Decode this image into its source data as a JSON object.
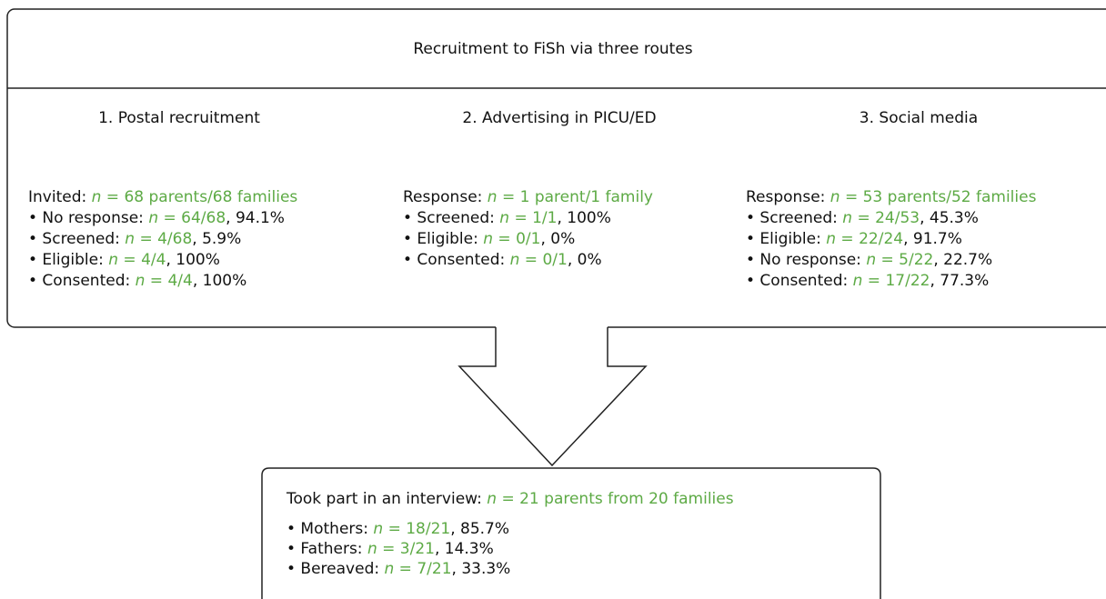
{
  "title": "Recruitment to FiSh via three routes",
  "routes": [
    {
      "heading": "1. Postal recruitment",
      "lines": [
        {
          "label": "Invited: ",
          "var": "n",
          "value": " = 68 parents/68 families",
          "rest": ""
        },
        {
          "label": "• No response: ",
          "var": "n",
          "value": " = 64/68",
          "rest": ", 94.1%"
        },
        {
          "label": "• Screened: ",
          "var": "n",
          "value": " = 4/68",
          "rest": ", 5.9%"
        },
        {
          "label": "• Eligible: ",
          "var": "n",
          "value": " = 4/4",
          "rest": ", 100%"
        },
        {
          "label": "• Consented: ",
          "var": "n",
          "value": " = 4/4",
          "rest": ", 100%"
        }
      ]
    },
    {
      "heading": "2. Advertising in PICU/ED",
      "lines": [
        {
          "label": "Response: ",
          "var": "n",
          "value": " = 1 parent/1 family",
          "rest": ""
        },
        {
          "label": "• Screened: ",
          "var": "n",
          "value": " = 1/1",
          "rest": ", 100%"
        },
        {
          "label": "• Eligible: ",
          "var": "n",
          "value": " = 0/1",
          "rest": ", 0%"
        },
        {
          "label": "• Consented: ",
          "var": "n",
          "value": " = 0/1",
          "rest": ", 0%"
        }
      ]
    },
    {
      "heading": "3. Social media",
      "lines": [
        {
          "label": "Response: ",
          "var": "n",
          "value": " = 53 parents/52 families",
          "rest": ""
        },
        {
          "label": "• Screened: ",
          "var": "n",
          "value": " = 24/53",
          "rest": ", 45.3%"
        },
        {
          "label": "• Eligible: ",
          "var": "n",
          "value": " = 22/24",
          "rest": ", 91.7%"
        },
        {
          "label": "• No response: ",
          "var": "n",
          "value": " = 5/22",
          "rest": ", 22.7%"
        },
        {
          "label": "• Consented: ",
          "var": "n",
          "value": " = 17/22",
          "rest": ", 77.3%"
        }
      ]
    }
  ],
  "outcome": {
    "lines": [
      {
        "label": "Took part in an interview: ",
        "var": "n",
        "value": " = 21 parents from 20 families",
        "rest": ""
      },
      {
        "label": "• Mothers: ",
        "var": "n",
        "value": " = 18/21",
        "rest": ", 85.7%"
      },
      {
        "label": "• Fathers: ",
        "var": "n",
        "value": " = 3/21",
        "rest": ", 14.3%"
      },
      {
        "label": "• Bereaved: ",
        "var": "n",
        "value": " = 7/21",
        "rest": ", 33.3%"
      }
    ]
  }
}
